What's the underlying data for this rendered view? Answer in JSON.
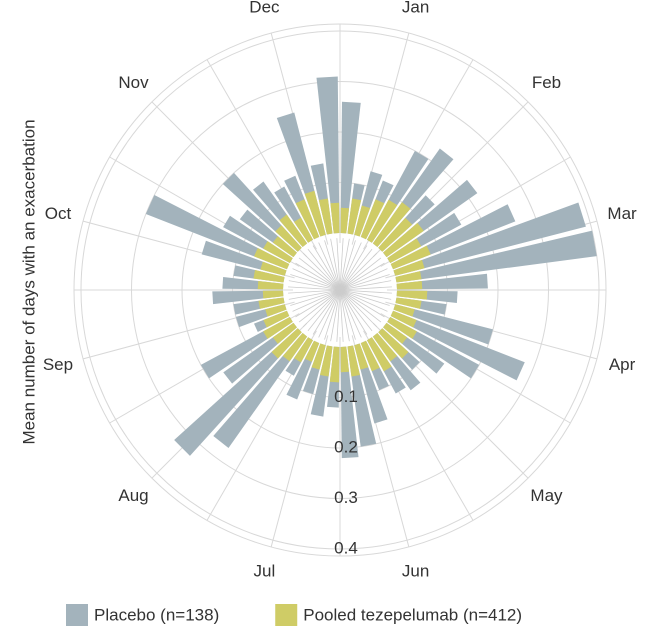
{
  "chart_data": {
    "type": "polar_bar",
    "y_label": "Mean number of days with an exacerbation",
    "months": [
      "Jan",
      "Feb",
      "Mar",
      "Apr",
      "May",
      "Jun",
      "Jul",
      "Aug",
      "Sep",
      "Oct",
      "Nov",
      "Dec"
    ],
    "categories": [
      null,
      null,
      null,
      null,
      null,
      null,
      null,
      null,
      null,
      null,
      null,
      null,
      null,
      null,
      null,
      null,
      null,
      null,
      null,
      null,
      null,
      null,
      null,
      null,
      null,
      null,
      null,
      null,
      null,
      null,
      null,
      null,
      null,
      null,
      null,
      null,
      null,
      null,
      null,
      null,
      null,
      null,
      null,
      null,
      null,
      null,
      null,
      null,
      null,
      null,
      null,
      null
    ],
    "series": [
      {
        "name": "Placebo (n=138)",
        "color": "#a3b3bc",
        "values": [
          0.26,
          0.1,
          0.13,
          0.12,
          0.2,
          0.23,
          0.14,
          0.22,
          0.16,
          0.26,
          0.39,
          0.4,
          0.18,
          0.12,
          0.1,
          0.2,
          0.28,
          0.2,
          0.14,
          0.1,
          0.13,
          0.12,
          0.1,
          0.16,
          0.2,
          0.22,
          0.12,
          0.14,
          0.1,
          0.12,
          0.08,
          0.27,
          0.33,
          0.17,
          0.2,
          0.07,
          0.1,
          0.1,
          0.14,
          0.12,
          0.1,
          0.17,
          0.3,
          0.15,
          0.13,
          0.2,
          0.15,
          0.12,
          0.13,
          0.25,
          0.14,
          0.31
        ]
      },
      {
        "name": "Pooled tezepelumab (n=412)",
        "color": "#cfcc66",
        "values": [
          0.05,
          0.07,
          0.06,
          0.08,
          0.09,
          0.1,
          0.08,
          0.09,
          0.07,
          0.08,
          0.06,
          0.05,
          0.05,
          0.06,
          0.05,
          0.04,
          0.05,
          0.06,
          0.05,
          0.07,
          0.06,
          0.07,
          0.06,
          0.05,
          0.06,
          0.05,
          0.07,
          0.06,
          0.05,
          0.04,
          0.05,
          0.06,
          0.07,
          0.05,
          0.06,
          0.05,
          0.04,
          0.05,
          0.04,
          0.05,
          0.06,
          0.05,
          0.07,
          0.06,
          0.05,
          0.06,
          0.07,
          0.05,
          0.08,
          0.09,
          0.07,
          0.06
        ]
      }
    ],
    "ylim": [
      0,
      0.4
    ],
    "yticks": [
      0.1,
      0.2,
      0.3,
      0.4
    ],
    "grid": true
  }
}
